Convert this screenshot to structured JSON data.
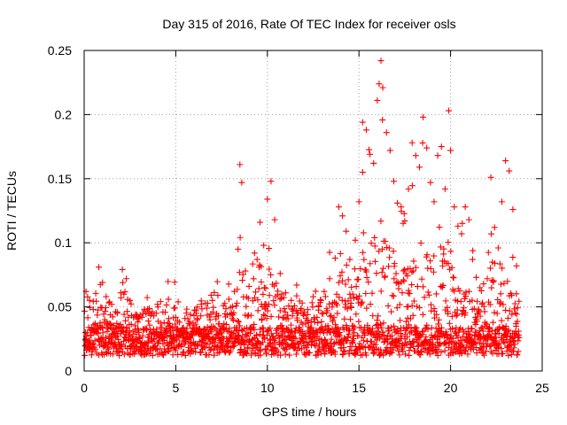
{
  "chart_data": {
    "type": "scatter",
    "title": "Day 315 of 2016, Rate Of TEC Index for receiver osls",
    "xlabel": "GPS time / hours",
    "ylabel": "ROTI / TECUs",
    "xlim": [
      0,
      25
    ],
    "ylim": [
      0,
      0.25
    ],
    "xticks": [
      0,
      5,
      10,
      15,
      20,
      25
    ],
    "xtick_labels": [
      "0",
      "5",
      "10",
      "15",
      "20",
      "25"
    ],
    "yticks": [
      0,
      0.05,
      0.1,
      0.15,
      0.2,
      0.25
    ],
    "ytick_labels": [
      "0",
      "0.05",
      "0.1",
      "0.15",
      "0.2",
      "0.25"
    ],
    "grid": true,
    "marker": "plus",
    "color": "#ff0000",
    "series": [
      {
        "name": "ROTI",
        "x": [
          0.1,
          0.3,
          0.5,
          0.8,
          1.0,
          1.2,
          1.5,
          1.8,
          2.0,
          2.3,
          2.5,
          2.8,
          3.0,
          3.3,
          3.5,
          3.8,
          4.0,
          4.3,
          4.6,
          4.9,
          5.2,
          5.5,
          5.8,
          6.1,
          6.4,
          6.7,
          7.0,
          7.3,
          7.6,
          7.9,
          8.2,
          8.4,
          8.5,
          8.6,
          8.8,
          9.0,
          9.3,
          9.6,
          9.8,
          10.0,
          10.2,
          10.4,
          10.7,
          11.0,
          11.3,
          11.6,
          11.9,
          12.2,
          12.5,
          12.8,
          13.1,
          13.4,
          13.7,
          13.9,
          14.1,
          14.3,
          14.5,
          14.8,
          15.0,
          15.2,
          15.4,
          15.6,
          15.8,
          16.0,
          16.1,
          16.2,
          16.3,
          16.5,
          16.7,
          16.9,
          17.1,
          17.3,
          17.5,
          17.7,
          17.9,
          18.1,
          18.3,
          18.5,
          18.7,
          18.9,
          19.1,
          19.3,
          19.5,
          19.7,
          19.9,
          20.0,
          20.2,
          20.4,
          20.6,
          20.8,
          21.0,
          21.2,
          21.4,
          21.6,
          21.8,
          22.0,
          22.2,
          22.4,
          22.6,
          22.8,
          23.0,
          23.2,
          23.4,
          23.6
        ],
        "y": [
          0.062,
          0.055,
          0.048,
          0.081,
          0.069,
          0.058,
          0.052,
          0.046,
          0.061,
          0.072,
          0.055,
          0.044,
          0.041,
          0.047,
          0.039,
          0.043,
          0.052,
          0.046,
          0.056,
          0.049,
          0.038,
          0.041,
          0.044,
          0.047,
          0.052,
          0.049,
          0.055,
          0.059,
          0.051,
          0.056,
          0.062,
          0.095,
          0.161,
          0.147,
          0.078,
          0.066,
          0.092,
          0.116,
          0.098,
          0.134,
          0.148,
          0.118,
          0.076,
          0.061,
          0.055,
          0.067,
          0.053,
          0.044,
          0.058,
          0.051,
          0.062,
          0.072,
          0.088,
          0.128,
          0.121,
          0.109,
          0.087,
          0.102,
          0.132,
          0.194,
          0.188,
          0.169,
          0.162,
          0.211,
          0.224,
          0.242,
          0.221,
          0.186,
          0.172,
          0.148,
          0.131,
          0.128,
          0.117,
          0.142,
          0.178,
          0.168,
          0.159,
          0.198,
          0.174,
          0.147,
          0.132,
          0.168,
          0.175,
          0.142,
          0.203,
          0.172,
          0.128,
          0.113,
          0.107,
          0.128,
          0.118,
          0.087,
          0.073,
          0.065,
          0.068,
          0.072,
          0.151,
          0.112,
          0.096,
          0.132,
          0.164,
          0.156,
          0.126,
          0.082
        ]
      }
    ]
  }
}
